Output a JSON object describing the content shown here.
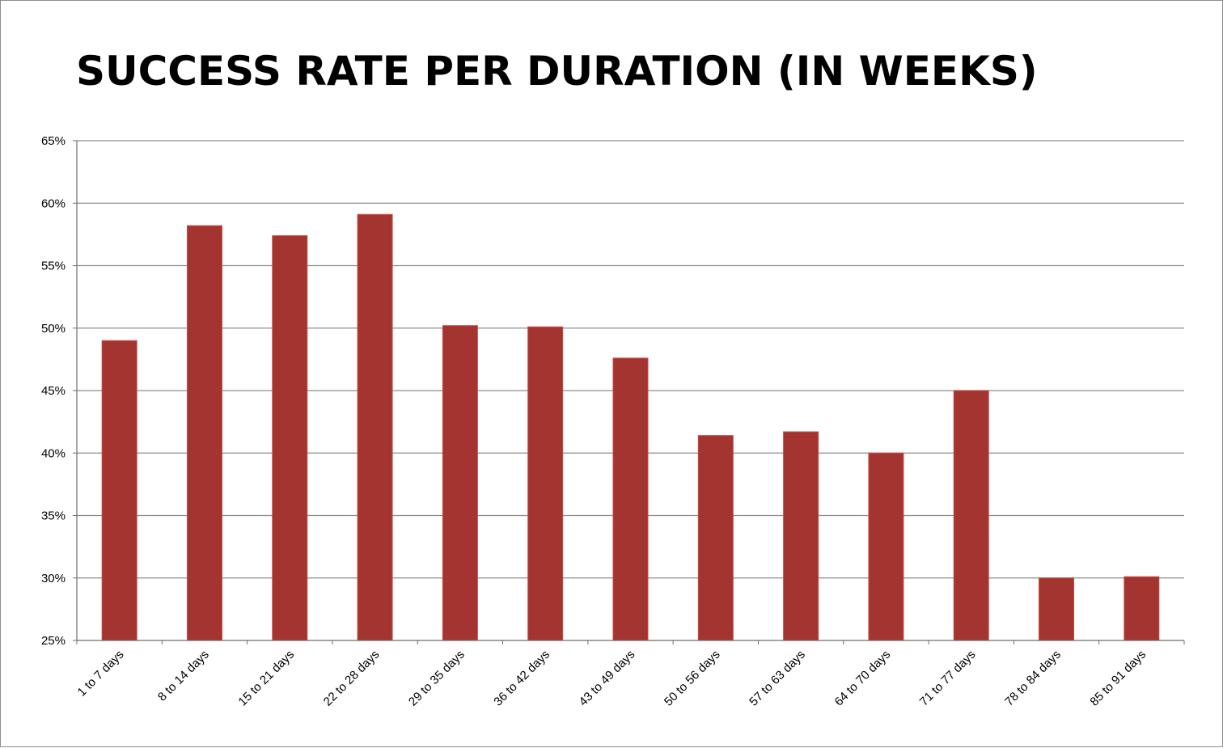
{
  "chart_data": {
    "type": "bar",
    "title": "SUCCESS RATE PER DURATION (IN WEEKS)",
    "xlabel": "",
    "ylabel": "",
    "ylim": [
      25,
      65
    ],
    "y_ticks": [
      "25%",
      "30%",
      "35%",
      "40%",
      "45%",
      "50%",
      "55%",
      "60%",
      "65%"
    ],
    "y_tick_values": [
      25,
      30,
      35,
      40,
      45,
      50,
      55,
      60,
      65
    ],
    "grid": true,
    "legend": "none",
    "categories": [
      "1 to 7 days",
      "8 to 14 days",
      "15 to 21 days",
      "22 to 28 days",
      "29 to 35 days",
      "36 to 42 days",
      "43 to 49 days",
      "50 to 56 days",
      "57 to 63 days",
      "64 to 70 days",
      "71 to 77 days",
      "78 to 84 days",
      "85 to 91 days"
    ],
    "values": [
      49.0,
      58.2,
      57.4,
      59.1,
      50.2,
      50.1,
      47.6,
      41.4,
      41.7,
      40.0,
      45.0,
      30.0,
      30.1
    ],
    "colors": {
      "bar": "#a33430",
      "bar_edge": "#c94a44",
      "grid": "#8c8c8c",
      "axis": "#6e6e6e"
    }
  }
}
